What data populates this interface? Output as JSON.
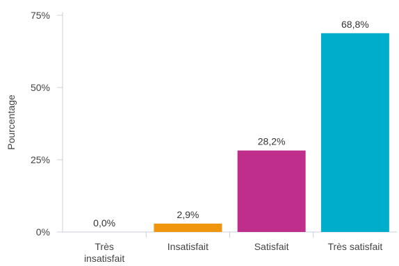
{
  "chart_data": {
    "type": "bar",
    "title": "",
    "xlabel": "",
    "ylabel": "Pourcentage",
    "ylim": [
      0,
      75
    ],
    "yticks": [
      {
        "value": 0,
        "label": "0%"
      },
      {
        "value": 25,
        "label": "25%"
      },
      {
        "value": 50,
        "label": "50%"
      },
      {
        "value": 75,
        "label": "75%"
      }
    ],
    "categories": [
      {
        "lines": [
          "Très",
          "insatisfait"
        ]
      },
      {
        "lines": [
          "Insatisfait"
        ]
      },
      {
        "lines": [
          "Satisfait"
        ]
      },
      {
        "lines": [
          "Très satisfait"
        ]
      }
    ],
    "values": [
      0.0,
      2.9,
      28.2,
      68.8
    ],
    "value_labels": [
      "0,0%",
      "2,9%",
      "28,2%",
      "68,8%"
    ],
    "colors": [
      "#5b6fb5",
      "#f0950e",
      "#c02e8c",
      "#00aecb"
    ],
    "grid": false,
    "legend": "none"
  }
}
